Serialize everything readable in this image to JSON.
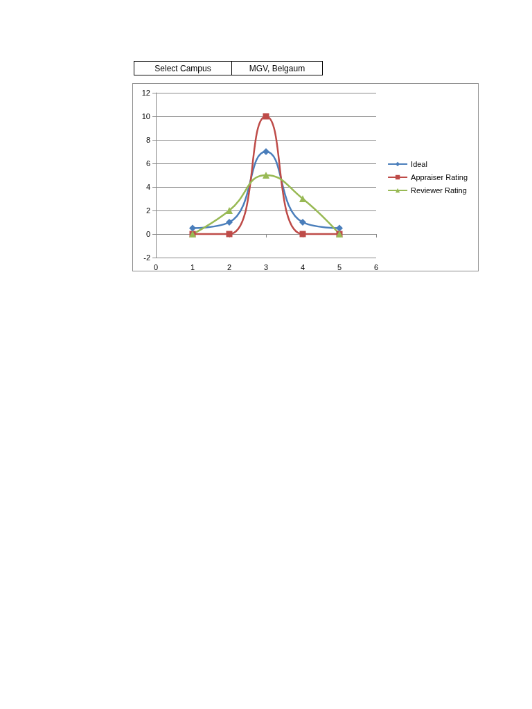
{
  "chart_data": {
    "type": "line",
    "annotations": [
      "Select Campus",
      "MGV, Belgaum"
    ],
    "x": [
      1,
      2,
      3,
      4,
      5
    ],
    "series": [
      {
        "name": "Ideal",
        "color": "#4a7ebb",
        "marker": "diamond",
        "values": [
          0.5,
          1,
          7,
          1,
          0.5
        ]
      },
      {
        "name": "Appraiser Rating",
        "color": "#be4b48",
        "marker": "square",
        "values": [
          0,
          0,
          10,
          0,
          0
        ]
      },
      {
        "name": "Reviewer Rating",
        "color": "#98b954",
        "marker": "triangle",
        "values": [
          0,
          2,
          5,
          3,
          0
        ]
      }
    ],
    "xlim": [
      0,
      6
    ],
    "xticks": [
      0,
      1,
      2,
      3,
      4,
      5,
      6
    ],
    "ylim": [
      -2,
      12
    ],
    "yticks": [
      -2,
      0,
      2,
      4,
      6,
      8,
      10,
      12
    ],
    "grid": "y",
    "legend": "right",
    "line_style": "solid"
  }
}
